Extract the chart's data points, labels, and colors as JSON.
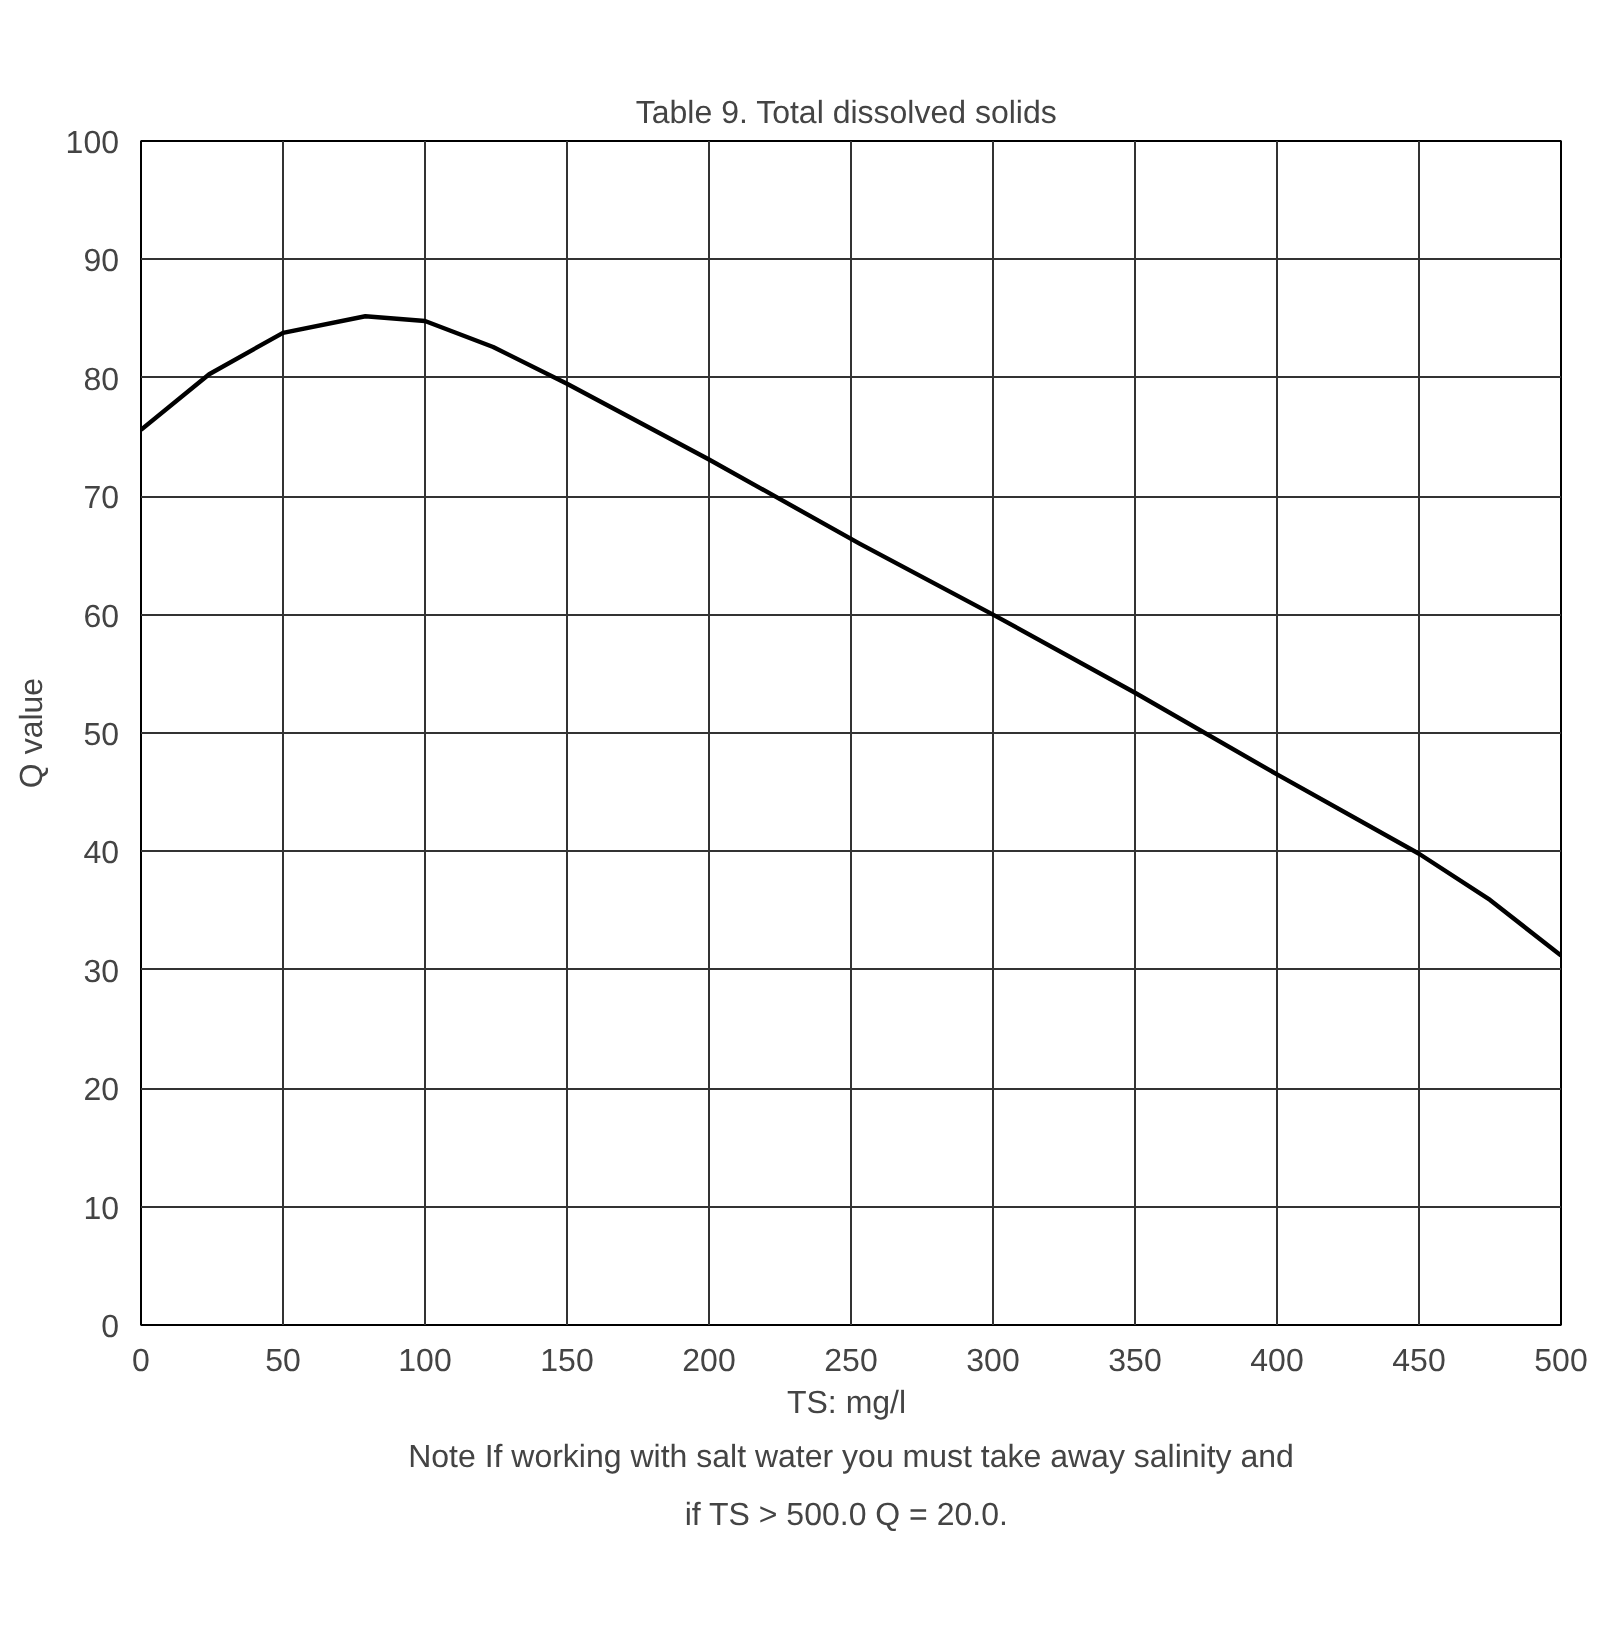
{
  "chart_data": {
    "type": "line",
    "title": "Table 9.  Total dissolved solids",
    "xlabel": "TS:  mg/l",
    "ylabel": "Q value",
    "x": [
      0,
      24,
      50,
      79,
      100,
      124,
      150,
      200,
      253,
      300,
      350,
      400,
      450,
      475,
      500
    ],
    "series": [
      {
        "color": "#000000",
        "values": [
          75.6,
          80.3,
          83.8,
          85.2,
          84.8,
          82.6,
          79.5,
          73.1,
          66.0,
          60.0,
          53.4,
          46.5,
          39.8,
          35.9,
          31.2
        ]
      }
    ],
    "xlim": [
      0,
      500
    ],
    "xticks": [
      0,
      50,
      100,
      150,
      200,
      250,
      300,
      350,
      400,
      450,
      500
    ],
    "ylim": [
      0,
      100
    ],
    "yticks": [
      0,
      10,
      20,
      30,
      40,
      50,
      60,
      70,
      80,
      90,
      100
    ],
    "grid": true,
    "line_style": "solid",
    "marker": "none",
    "annotations": [
      "Note If working with salt water you must take away salinity and",
      "if TS > 500.0  Q = 20.0."
    ]
  }
}
